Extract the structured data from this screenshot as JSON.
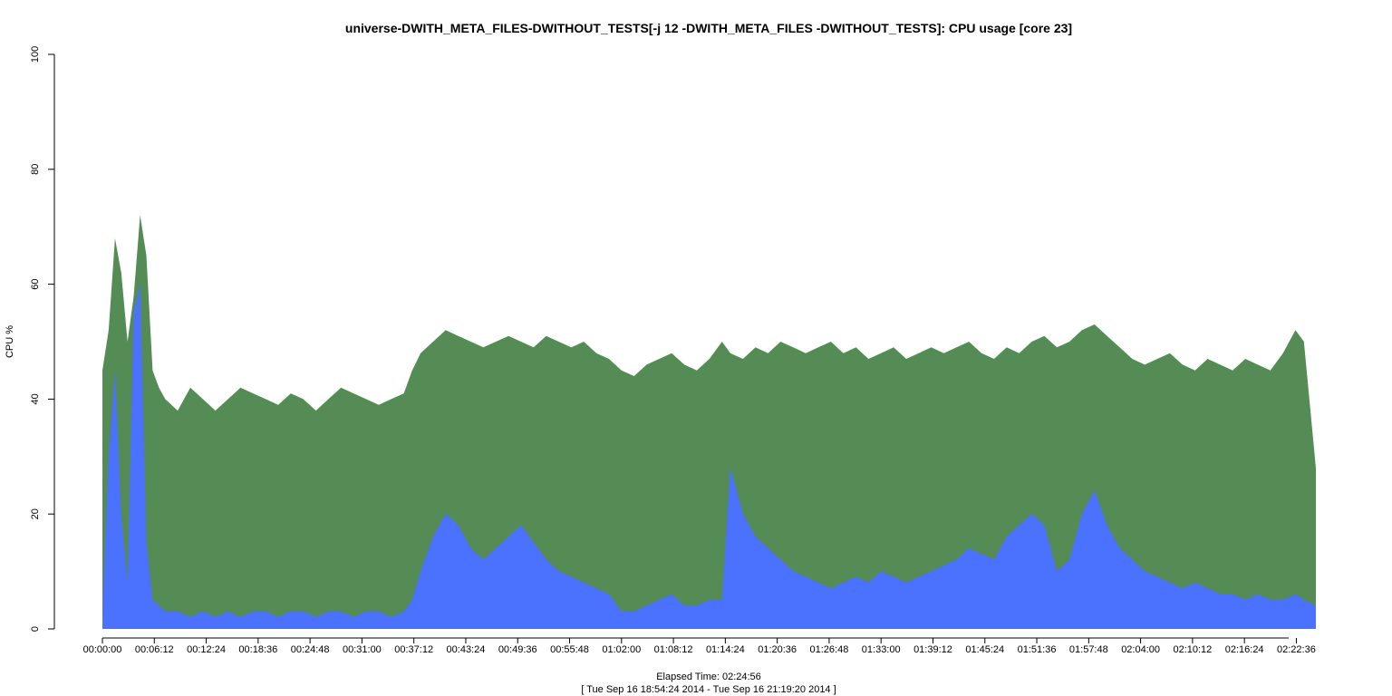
{
  "chart_data": {
    "type": "area",
    "title": "universe-DWITH_META_FILES-DWITHOUT_TESTS[-j 12 -DWITH_META_FILES -DWITHOUT_TESTS]: CPU usage [core 23]",
    "ylabel": "CPU %",
    "xlabel_lines": [
      "Elapsed Time: 02:24:56",
      "[ Tue Sep 16 18:54:24 2014 - Tue Sep 16 21:19:20 2014 ]"
    ],
    "ylim": [
      0,
      100
    ],
    "y_ticks": [
      0,
      20,
      40,
      60,
      80,
      100
    ],
    "x_range_seconds": [
      0,
      8696
    ],
    "x_ticks": [
      "00:00:00",
      "00:06:12",
      "00:12:24",
      "00:18:36",
      "00:24:48",
      "00:31:00",
      "00:37:12",
      "00:43:24",
      "00:49:36",
      "00:55:48",
      "01:02:00",
      "01:08:12",
      "01:14:24",
      "01:20:36",
      "01:26:48",
      "01:33:00",
      "01:39:12",
      "01:45:24",
      "01:51:36",
      "01:57:48",
      "02:04:00",
      "02:10:12",
      "02:16:24",
      "02:22:36"
    ],
    "grid": false,
    "legend": "none",
    "series": [
      {
        "color": "#558b55",
        "x": [
          "00:00:00",
          "00:00:45",
          "00:01:30",
          "00:02:15",
          "00:03:00",
          "00:03:45",
          "00:04:30",
          "00:05:15",
          "00:06:00",
          "00:06:45",
          "00:07:30",
          "00:09:00",
          "00:10:30",
          "00:12:00",
          "00:13:30",
          "00:15:00",
          "00:16:30",
          "00:18:00",
          "00:19:30",
          "00:21:00",
          "00:22:30",
          "00:24:00",
          "00:25:30",
          "00:27:00",
          "00:28:30",
          "00:30:00",
          "00:31:30",
          "00:33:00",
          "00:34:30",
          "00:36:00",
          "00:37:00",
          "00:38:00",
          "00:39:30",
          "00:41:00",
          "00:42:30",
          "00:44:00",
          "00:45:30",
          "00:47:00",
          "00:48:30",
          "00:50:00",
          "00:51:30",
          "00:53:00",
          "00:54:30",
          "00:56:00",
          "00:57:30",
          "00:59:00",
          "01:00:30",
          "01:02:00",
          "01:03:30",
          "01:05:00",
          "01:06:30",
          "01:08:00",
          "01:09:30",
          "01:11:00",
          "01:12:30",
          "01:14:00",
          "01:15:00",
          "01:16:30",
          "01:18:00",
          "01:19:30",
          "01:21:00",
          "01:22:30",
          "01:24:00",
          "01:25:30",
          "01:27:00",
          "01:28:30",
          "01:30:00",
          "01:31:30",
          "01:33:00",
          "01:34:30",
          "01:36:00",
          "01:37:30",
          "01:39:00",
          "01:40:30",
          "01:42:00",
          "01:43:30",
          "01:45:00",
          "01:46:30",
          "01:48:00",
          "01:49:30",
          "01:51:00",
          "01:52:30",
          "01:54:00",
          "01:55:30",
          "01:57:00",
          "01:58:30",
          "02:00:00",
          "02:01:30",
          "02:03:00",
          "02:04:30",
          "02:06:00",
          "02:07:30",
          "02:09:00",
          "02:10:30",
          "02:12:00",
          "02:13:30",
          "02:15:00",
          "02:16:30",
          "02:18:00",
          "02:19:30",
          "02:21:00",
          "02:22:30",
          "02:23:30",
          "02:24:56"
        ],
        "values": [
          45,
          52,
          68,
          62,
          50,
          58,
          72,
          65,
          45,
          42,
          40,
          38,
          42,
          40,
          38,
          40,
          42,
          41,
          40,
          39,
          41,
          40,
          38,
          40,
          42,
          41,
          40,
          39,
          40,
          41,
          45,
          48,
          50,
          52,
          51,
          50,
          49,
          50,
          51,
          50,
          49,
          51,
          50,
          49,
          50,
          48,
          47,
          45,
          44,
          46,
          47,
          48,
          46,
          45,
          47,
          50,
          48,
          47,
          49,
          48,
          50,
          49,
          48,
          49,
          50,
          48,
          49,
          47,
          48,
          49,
          47,
          48,
          49,
          48,
          49,
          50,
          48,
          47,
          49,
          48,
          50,
          51,
          49,
          50,
          52,
          53,
          51,
          49,
          47,
          46,
          47,
          48,
          46,
          45,
          47,
          46,
          45,
          47,
          46,
          45,
          48,
          52,
          50,
          28
        ]
      },
      {
        "color": "#4a72ff",
        "x": [
          "00:00:00",
          "00:00:45",
          "00:01:30",
          "00:02:15",
          "00:03:00",
          "00:03:45",
          "00:04:30",
          "00:05:15",
          "00:06:00",
          "00:06:45",
          "00:07:30",
          "00:09:00",
          "00:10:30",
          "00:12:00",
          "00:13:30",
          "00:15:00",
          "00:16:30",
          "00:18:00",
          "00:19:30",
          "00:21:00",
          "00:22:30",
          "00:24:00",
          "00:25:30",
          "00:27:00",
          "00:28:30",
          "00:30:00",
          "00:31:30",
          "00:33:00",
          "00:34:30",
          "00:36:00",
          "00:37:00",
          "00:38:00",
          "00:39:30",
          "00:41:00",
          "00:42:30",
          "00:44:00",
          "00:45:30",
          "00:47:00",
          "00:48:30",
          "00:50:00",
          "00:51:30",
          "00:53:00",
          "00:54:30",
          "00:56:00",
          "00:57:30",
          "00:59:00",
          "01:00:30",
          "01:02:00",
          "01:03:30",
          "01:05:00",
          "01:06:30",
          "01:08:00",
          "01:09:30",
          "01:11:00",
          "01:12:30",
          "01:14:00",
          "01:15:00",
          "01:16:30",
          "01:18:00",
          "01:19:30",
          "01:21:00",
          "01:22:30",
          "01:24:00",
          "01:25:30",
          "01:27:00",
          "01:28:30",
          "01:30:00",
          "01:31:30",
          "01:33:00",
          "01:34:30",
          "01:36:00",
          "01:37:30",
          "01:39:00",
          "01:40:30",
          "01:42:00",
          "01:43:30",
          "01:45:00",
          "01:46:30",
          "01:48:00",
          "01:49:30",
          "01:51:00",
          "01:52:30",
          "01:54:00",
          "01:55:30",
          "01:57:00",
          "01:58:30",
          "02:00:00",
          "02:01:30",
          "02:03:00",
          "02:04:30",
          "02:06:00",
          "02:07:30",
          "02:09:00",
          "02:10:30",
          "02:12:00",
          "02:13:30",
          "02:15:00",
          "02:16:30",
          "02:18:00",
          "02:19:30",
          "02:21:00",
          "02:22:30",
          "02:23:30",
          "02:24:56"
        ],
        "values": [
          2,
          30,
          45,
          20,
          8,
          55,
          60,
          15,
          5,
          4,
          3,
          3,
          2,
          3,
          2,
          3,
          2,
          3,
          3,
          2,
          3,
          3,
          2,
          3,
          3,
          2,
          3,
          3,
          2,
          3,
          5,
          10,
          16,
          20,
          18,
          14,
          12,
          14,
          16,
          18,
          15,
          12,
          10,
          9,
          8,
          7,
          6,
          3,
          3,
          4,
          5,
          6,
          4,
          4,
          5,
          5,
          28,
          20,
          16,
          14,
          12,
          10,
          9,
          8,
          7,
          8,
          9,
          8,
          10,
          9,
          8,
          9,
          10,
          11,
          12,
          14,
          13,
          12,
          16,
          18,
          20,
          18,
          10,
          12,
          20,
          24,
          18,
          14,
          12,
          10,
          9,
          8,
          7,
          8,
          7,
          6,
          6,
          5,
          6,
          5,
          5,
          6,
          5,
          4
        ]
      }
    ]
  }
}
